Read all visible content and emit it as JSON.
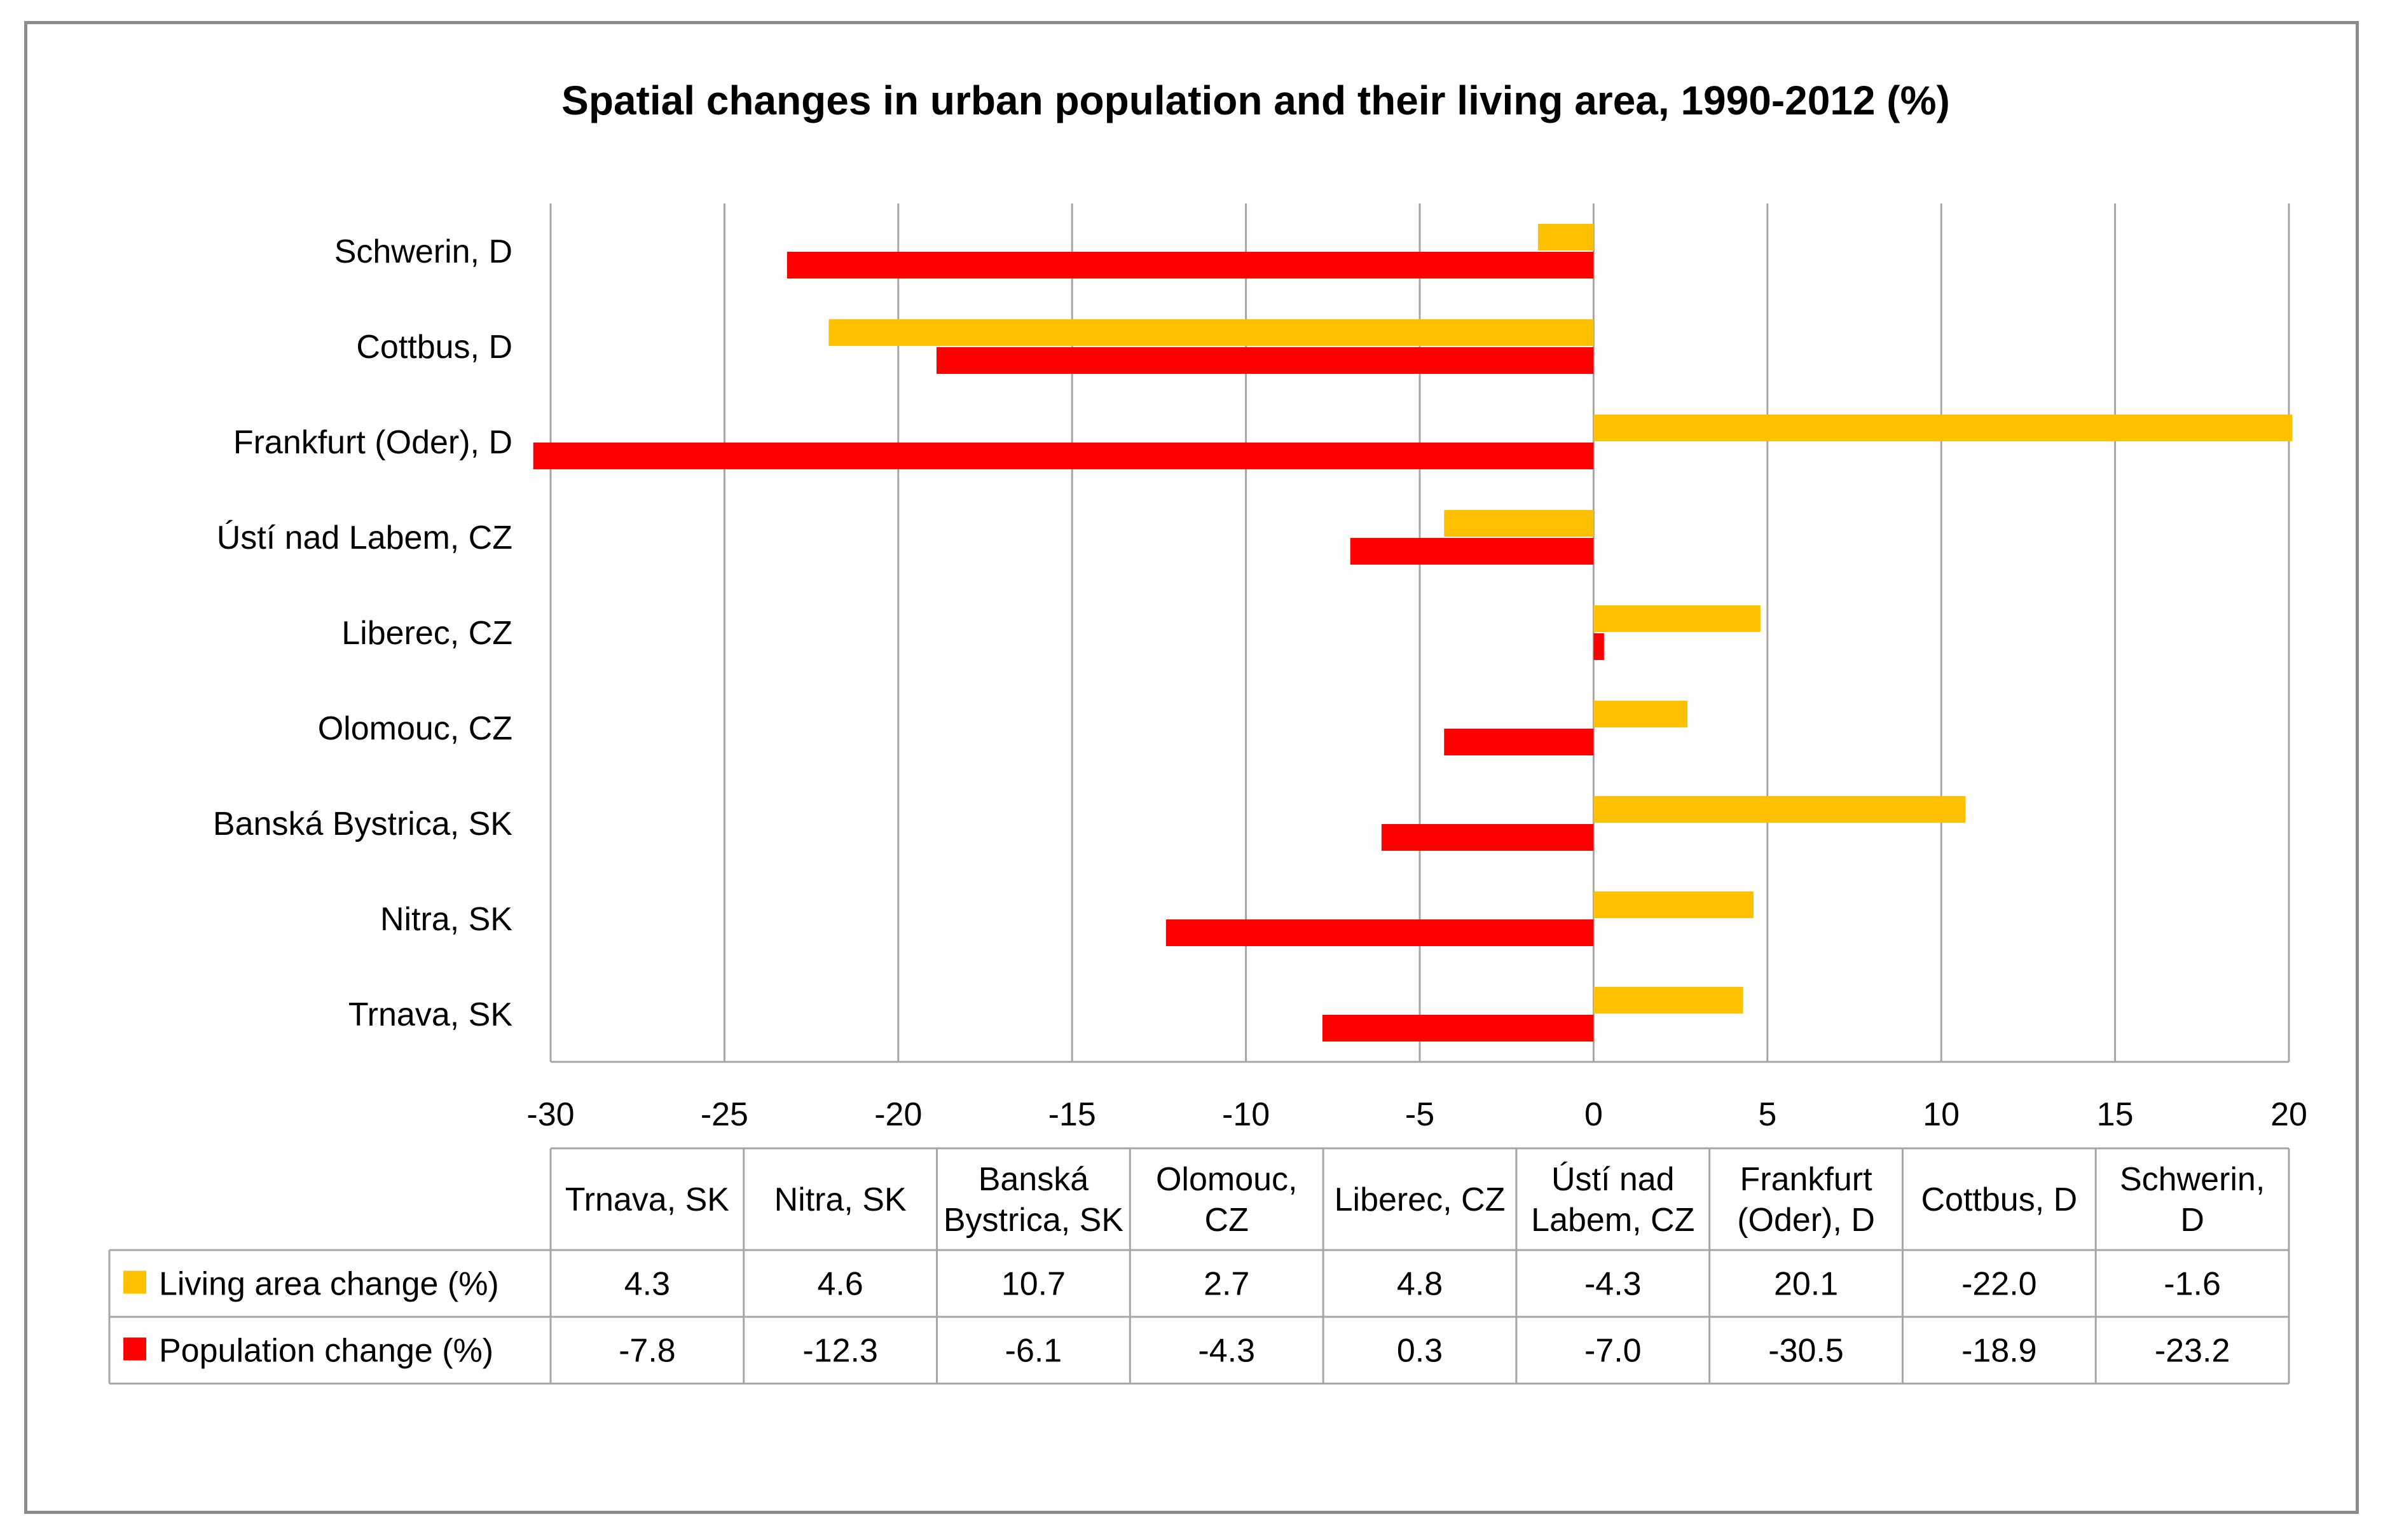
{
  "chart_data": {
    "type": "bar",
    "orientation": "horizontal",
    "title": "Spatial changes in urban population and their living area, 1990-2012 (%)",
    "categories": [
      "Trnava, SK",
      "Nitra, SK",
      "Banská Bystrica, SK",
      "Olomouc, CZ",
      "Liberec, CZ",
      "Ústí nad Labem, CZ",
      "Frankfurt (Oder), D",
      "Cottbus, D",
      "Schwerin, D"
    ],
    "table_headers": [
      [
        "Trnava, SK"
      ],
      [
        "Nitra, SK"
      ],
      [
        "Banská",
        "Bystrica, SK"
      ],
      [
        "Olomouc,",
        "CZ"
      ],
      [
        "Liberec, CZ"
      ],
      [
        "Ústí nad",
        "Labem, CZ"
      ],
      [
        "Frankfurt",
        "(Oder), D"
      ],
      [
        "Cottbus, D"
      ],
      [
        "Schwerin,",
        "D"
      ]
    ],
    "series": [
      {
        "name": "Living area change (%)",
        "color": "#FFC000",
        "values": [
          4.3,
          4.6,
          10.7,
          2.7,
          4.8,
          -4.3,
          20.1,
          -22.0,
          -1.6
        ],
        "labels": [
          "4.3",
          "4.6",
          "10.7",
          "2.7",
          "4.8",
          "-4.3",
          "20.1",
          "-22.0",
          "-1.6"
        ]
      },
      {
        "name": "Population change (%)",
        "color": "#FF0000",
        "values": [
          -7.8,
          -12.3,
          -6.1,
          -4.3,
          0.3,
          -7.0,
          -30.5,
          -18.9,
          -23.2
        ],
        "labels": [
          "-7.8",
          "-12.3",
          "-6.1",
          "-4.3",
          "0.3",
          "-7.0",
          "-30.5",
          "-18.9",
          "-23.2"
        ]
      }
    ],
    "xlim": [
      -30,
      20
    ],
    "xticks": [
      -30,
      -25,
      -20,
      -15,
      -10,
      -5,
      0,
      5,
      10,
      15,
      20
    ],
    "grid": true,
    "legend": "data-table"
  }
}
